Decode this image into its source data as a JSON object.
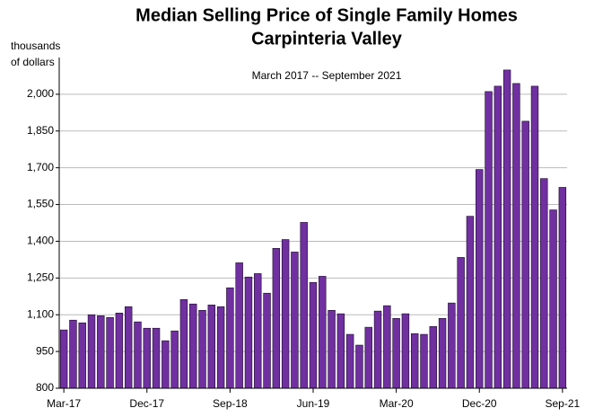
{
  "chart_data": {
    "type": "bar",
    "title": "Median Selling Price of Single Family Homes",
    "subtitle": "Carpinteria Valley",
    "date_range": "March 2017 -- September 2021",
    "y_label": [
      "thousands",
      "of dollars"
    ],
    "categories": [
      "Mar-17",
      null,
      null,
      null,
      null,
      null,
      null,
      null,
      null,
      "Dec-17",
      null,
      null,
      null,
      null,
      null,
      null,
      null,
      null,
      "Sep-18",
      null,
      null,
      null,
      null,
      null,
      null,
      null,
      null,
      "Jun-19",
      null,
      null,
      null,
      null,
      null,
      null,
      null,
      null,
      "Mar-20",
      null,
      null,
      null,
      null,
      null,
      null,
      null,
      null,
      "Dec-20",
      null,
      null,
      null,
      null,
      null,
      null,
      null,
      null,
      "Sep-21"
    ],
    "values": [
      1038,
      1078,
      1067,
      1100,
      1096,
      1089,
      1107,
      1133,
      1071,
      1045,
      1045,
      994,
      1034,
      1162,
      1144,
      1118,
      1140,
      1133,
      1210,
      1312,
      1254,
      1268,
      1188,
      1371,
      1407,
      1356,
      1477,
      1232,
      1257,
      1118,
      1104,
      1020,
      976,
      1049,
      1115,
      1137,
      1085,
      1104,
      1023,
      1020,
      1052,
      1085,
      1148,
      1334,
      1502,
      1693,
      2011,
      2033,
      2099,
      2044,
      1890,
      2033,
      1656,
      1528,
      1620
    ],
    "color": "#7030a0",
    "ylim": [
      800,
      2150
    ],
    "yticks": [
      800,
      950,
      {
        "value": 1100,
        "label": "1,100"
      },
      {
        "value": 1250,
        "label": "1,250"
      },
      {
        "value": 1400,
        "label": "1,400"
      },
      {
        "value": 1550,
        "label": "1,550"
      },
      {
        "value": 1700,
        "label": "1,700"
      },
      {
        "value": 1850,
        "label": "1,850"
      },
      {
        "value": 2000,
        "label": "2,000"
      }
    ],
    "grid": true
  }
}
